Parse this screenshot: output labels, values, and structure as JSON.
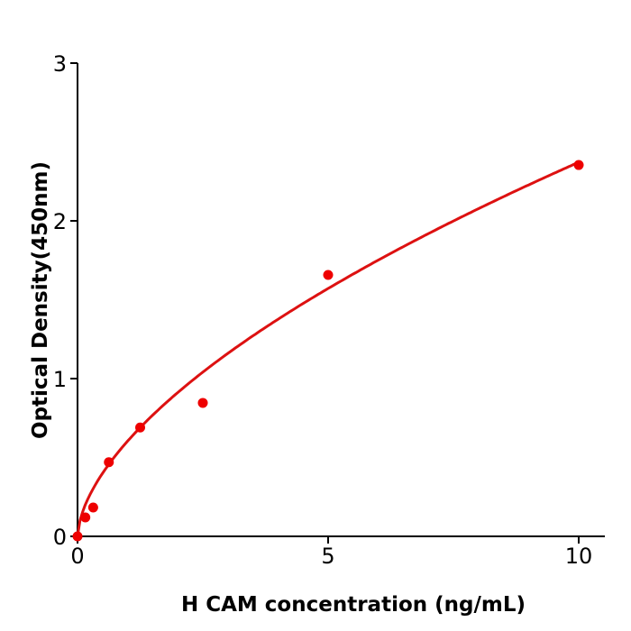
{
  "chart_data": {
    "type": "scatter",
    "title": "",
    "xlabel": "H  CAM concentration (ng/mL)",
    "ylabel": "Optical Density(450nm)",
    "xlim": [
      0,
      10.5
    ],
    "ylim": [
      0,
      3
    ],
    "xticks": [
      "0",
      "5",
      "10"
    ],
    "yticks": [
      "0",
      "1",
      "2",
      "3"
    ],
    "grid": false,
    "colors": {
      "points": "#ee0000",
      "curve": "#dd1111"
    },
    "series": [
      {
        "x": [
          0,
          0.156,
          0.3125,
          0.625,
          1.25,
          2.5,
          5,
          10
        ],
        "y": [
          0.0,
          0.12,
          0.183,
          0.47,
          0.69,
          0.846,
          1.657,
          2.354
        ]
      }
    ],
    "fit_curve": {
      "x": [
        0,
        0.1,
        0.25,
        0.5,
        1,
        1.5,
        2,
        3,
        4,
        5,
        6,
        7,
        8,
        9,
        10
      ],
      "y": [
        0,
        0.154,
        0.266,
        0.402,
        0.604,
        0.771,
        0.912,
        1.15,
        1.37,
        1.57,
        1.75,
        1.92,
        2.08,
        2.23,
        2.37
      ]
    }
  }
}
